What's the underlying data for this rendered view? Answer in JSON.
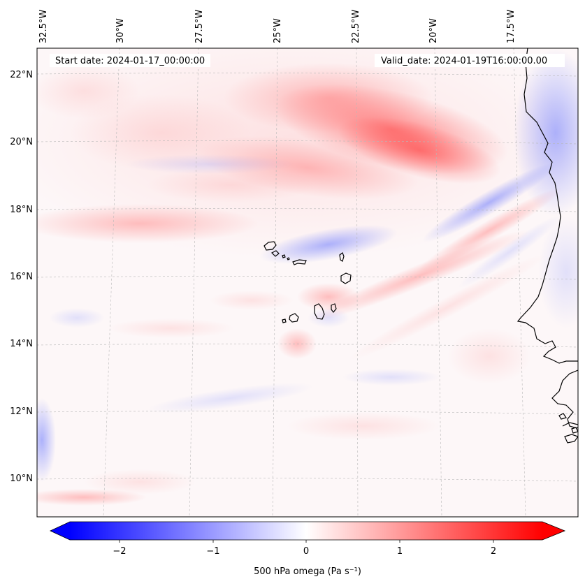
{
  "map": {
    "start_date": "Start date: 2024-01-17_00:00:00",
    "valid_date": "Valid_date: 2024-01-19T16:00:00.00",
    "longitude_labels": [
      "32.5°W",
      "30°W",
      "27.5°W",
      "25°W",
      "22.5°W",
      "20°W",
      "17.5°W"
    ],
    "latitude_labels": [
      "22°N",
      "20°N",
      "18°N",
      "16°N",
      "14°N",
      "12°N",
      "10°N"
    ],
    "projection_extent": {
      "lon_range_deg": [
        -33.0,
        -15.0
      ],
      "lat_range_deg": [
        9.0,
        22.8
      ]
    },
    "features": [
      "Cape Verde islands",
      "West African coastline (Senegal, The Gambia, Guinea-Bissau)"
    ],
    "field": "500 hPa vertical velocity (omega)"
  },
  "colorbar": {
    "label": "500 hPa omega (Pa s⁻¹)",
    "ticks": [
      "−2",
      "−1",
      "0",
      "1",
      "2"
    ],
    "tick_values": [
      -2,
      -1,
      0,
      1,
      2
    ],
    "range": [
      -2.5,
      2.5
    ],
    "extend": "both",
    "colormap": "bwr",
    "color_min": "#0000ff",
    "color_mid": "#ffffff",
    "color_max": "#ff0000"
  }
}
